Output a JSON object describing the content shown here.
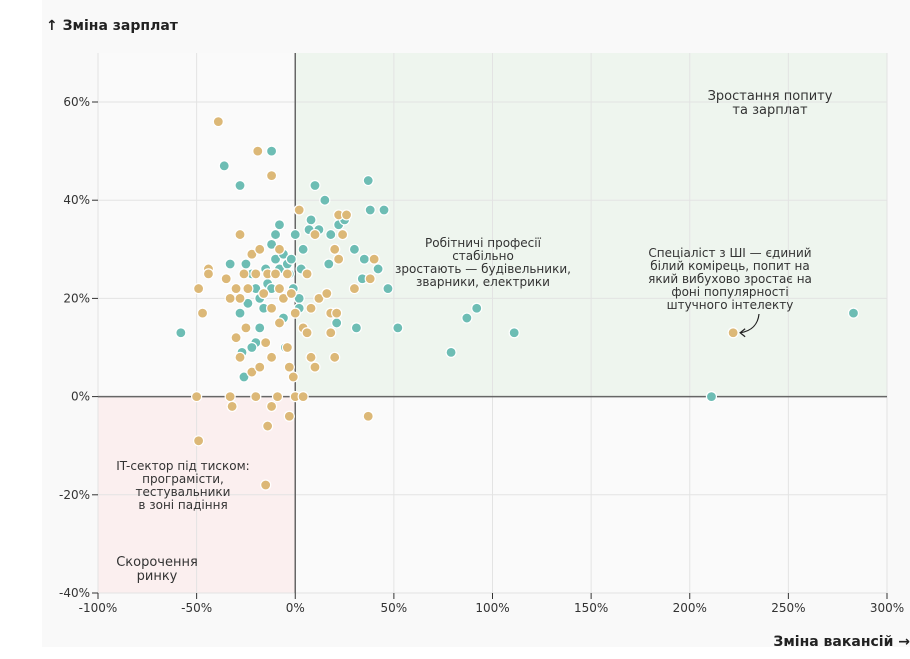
{
  "chart_data": {
    "type": "scatter",
    "title": "",
    "ylabel": "↑ Зміна зарплат",
    "xlabel": "Зміна вакансій →",
    "xlim": [
      -100,
      300
    ],
    "ylim": [
      -40,
      70
    ],
    "x_ticks": [
      -100,
      -50,
      0,
      50,
      100,
      150,
      200,
      250,
      300
    ],
    "x_tick_labels": [
      "-100%",
      "-50%",
      "0%",
      "50%",
      "100%",
      "150%",
      "200%",
      "250%",
      "300%"
    ],
    "y_ticks": [
      -40,
      -20,
      0,
      20,
      40,
      60
    ],
    "y_tick_labels": [
      "-40%",
      "-20%",
      "0%",
      "20%",
      "40%",
      "60%"
    ],
    "grid": true,
    "quadrants": [
      {
        "name": "growth",
        "label_lines": [
          "Зростання попиту",
          "та зарплат"
        ],
        "color": "#eef5ee"
      },
      {
        "name": "decline",
        "label_lines": [
          "Скорочення",
          "ринку"
        ],
        "color": "#fbefef"
      }
    ],
    "annotations": [
      {
        "name": "it-sector",
        "lines": [
          "IT-сектор під тиском:",
          "програмісти,",
          "тестувальники",
          "в зоні падіння"
        ],
        "x": -50,
        "y": -18
      },
      {
        "name": "blue-collar",
        "lines": [
          "Робітничі професії",
          "стабільно",
          "зростають — будівельники,",
          "зварники, електрики"
        ],
        "x": 95,
        "y": 32
      },
      {
        "name": "ai-specialist",
        "lines": [
          "Спеціаліст з ШІ — єдиний",
          "білий комірець, попит на",
          "який вибухово зростає на",
          "фоні популярності",
          "штучного інтелекту"
        ],
        "x": 222,
        "y": 30,
        "target": [
          222,
          13
        ]
      }
    ],
    "colors": {
      "blue_collar": "#6dbdb4",
      "white_collar": "#dcb877"
    },
    "series": [
      {
        "name": "blue-collar",
        "color": "#6dbdb4",
        "points": [
          [
            -58,
            13
          ],
          [
            -36,
            47
          ],
          [
            -28,
            43
          ],
          [
            -12,
            50
          ],
          [
            -33,
            27
          ],
          [
            -28,
            17
          ],
          [
            -25,
            27
          ],
          [
            -22,
            25
          ],
          [
            -20,
            22
          ],
          [
            -18,
            20
          ],
          [
            -16,
            18
          ],
          [
            -14,
            23
          ],
          [
            -12,
            31
          ],
          [
            -10,
            28
          ],
          [
            -8,
            26
          ],
          [
            -6,
            29
          ],
          [
            -4,
            27
          ],
          [
            -2,
            28
          ],
          [
            -1,
            22
          ],
          [
            2,
            20
          ],
          [
            4,
            30
          ],
          [
            6,
            25
          ],
          [
            8,
            36
          ],
          [
            10,
            43
          ],
          [
            12,
            34
          ],
          [
            15,
            40
          ],
          [
            18,
            33
          ],
          [
            20,
            30
          ],
          [
            22,
            35
          ],
          [
            25,
            36
          ],
          [
            30,
            30
          ],
          [
            34,
            24
          ],
          [
            37,
            44
          ],
          [
            38,
            38
          ],
          [
            42,
            26
          ],
          [
            45,
            38
          ],
          [
            47,
            22
          ],
          [
            52,
            14
          ],
          [
            31,
            14
          ],
          [
            35,
            28
          ],
          [
            -20,
            11
          ],
          [
            -22,
            10
          ],
          [
            -27,
            9
          ],
          [
            -26,
            4
          ],
          [
            -5,
            10
          ],
          [
            -3,
            25
          ],
          [
            0,
            33
          ],
          [
            2,
            18
          ],
          [
            -8,
            35
          ],
          [
            -10,
            33
          ],
          [
            -15,
            26
          ],
          [
            -18,
            14
          ],
          [
            -24,
            19
          ],
          [
            -12,
            22
          ],
          [
            -6,
            16
          ],
          [
            3,
            26
          ],
          [
            7,
            34
          ],
          [
            17,
            27
          ],
          [
            21,
            15
          ],
          [
            24,
            33
          ],
          [
            79,
            9
          ],
          [
            87,
            16
          ],
          [
            92,
            18
          ],
          [
            111,
            13
          ],
          [
            211,
            0
          ],
          [
            283,
            17
          ]
        ]
      },
      {
        "name": "white-collar",
        "color": "#dcb877",
        "points": [
          [
            -39,
            56
          ],
          [
            -19,
            50
          ],
          [
            -12,
            45
          ],
          [
            -28,
            33
          ],
          [
            -44,
            26
          ],
          [
            -44,
            25
          ],
          [
            -49,
            22
          ],
          [
            -47,
            17
          ],
          [
            -35,
            24
          ],
          [
            -33,
            20
          ],
          [
            -30,
            22
          ],
          [
            -28,
            20
          ],
          [
            -26,
            25
          ],
          [
            -24,
            22
          ],
          [
            -22,
            29
          ],
          [
            -20,
            25
          ],
          [
            -18,
            30
          ],
          [
            -16,
            21
          ],
          [
            -14,
            25
          ],
          [
            -12,
            18
          ],
          [
            -10,
            25
          ],
          [
            -8,
            22
          ],
          [
            -6,
            20
          ],
          [
            -4,
            25
          ],
          [
            -2,
            21
          ],
          [
            0,
            17
          ],
          [
            2,
            38
          ],
          [
            4,
            14
          ],
          [
            6,
            25
          ],
          [
            8,
            18
          ],
          [
            10,
            33
          ],
          [
            12,
            20
          ],
          [
            16,
            21
          ],
          [
            18,
            17
          ],
          [
            20,
            30
          ],
          [
            22,
            37
          ],
          [
            26,
            37
          ],
          [
            30,
            22
          ],
          [
            38,
            24
          ],
          [
            40,
            28
          ],
          [
            -30,
            12
          ],
          [
            -28,
            8
          ],
          [
            -25,
            14
          ],
          [
            -22,
            5
          ],
          [
            -18,
            6
          ],
          [
            -15,
            11
          ],
          [
            -12,
            8
          ],
          [
            -8,
            15
          ],
          [
            -4,
            10
          ],
          [
            -3,
            6
          ],
          [
            -1,
            4
          ],
          [
            6,
            13
          ],
          [
            8,
            8
          ],
          [
            10,
            6
          ],
          [
            18,
            13
          ],
          [
            20,
            8
          ],
          [
            21,
            17
          ],
          [
            22,
            28
          ],
          [
            24,
            33
          ],
          [
            -8,
            30
          ],
          [
            -50,
            0
          ],
          [
            -33,
            0
          ],
          [
            -32,
            -2
          ],
          [
            -20,
            0
          ],
          [
            -12,
            -2
          ],
          [
            -9,
            0
          ],
          [
            -3,
            -4
          ],
          [
            0,
            0
          ],
          [
            4,
            0
          ],
          [
            37,
            -4
          ],
          [
            -49,
            -9
          ],
          [
            -14,
            -6
          ],
          [
            -15,
            -18
          ],
          [
            222,
            13
          ]
        ]
      }
    ]
  }
}
